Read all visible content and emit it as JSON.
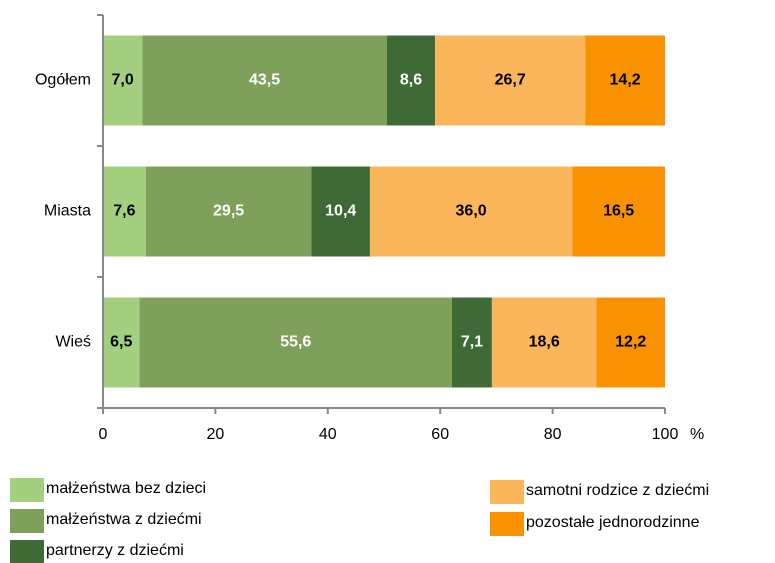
{
  "chart_data": {
    "type": "stacked_bar_horizontal",
    "categories": [
      "Ogółem",
      "Miasta",
      "Wieś"
    ],
    "series": [
      {
        "name": "małżeństwa bez dzieci",
        "color": "#a3d07f",
        "label_color": "#000000",
        "values": [
          7.0,
          7.6,
          6.5
        ],
        "value_labels": [
          "7,0",
          "7,6",
          "6,5"
        ]
      },
      {
        "name": "małżeństwa z dziećmi",
        "color": "#7fa05a",
        "label_color": "#ffffff",
        "values": [
          43.5,
          29.5,
          55.6
        ],
        "value_labels": [
          "43,5",
          "29,5",
          "55,6"
        ]
      },
      {
        "name": "partnerzy z dziećmi",
        "color": "#3e6b35",
        "label_color": "#ffffff",
        "values": [
          8.6,
          10.4,
          7.1
        ],
        "value_labels": [
          "8,6",
          "10,4",
          "7,1"
        ]
      },
      {
        "name": "samotni rodzice z dziećmi",
        "color": "#fbb55a",
        "label_color": "#000000",
        "values": [
          26.7,
          36.0,
          18.6
        ],
        "value_labels": [
          "26,7",
          "36,0",
          "18,6"
        ]
      },
      {
        "name": "pozostałe jednorodzinne",
        "color": "#f99200",
        "label_color": "#000000",
        "values": [
          14.2,
          16.5,
          12.2
        ],
        "value_labels": [
          "14,2",
          "16,5",
          "12,2"
        ]
      }
    ],
    "xlim": [
      0,
      100
    ],
    "xticks": [
      0,
      20,
      40,
      60,
      80,
      100
    ],
    "xlabel": "%"
  }
}
